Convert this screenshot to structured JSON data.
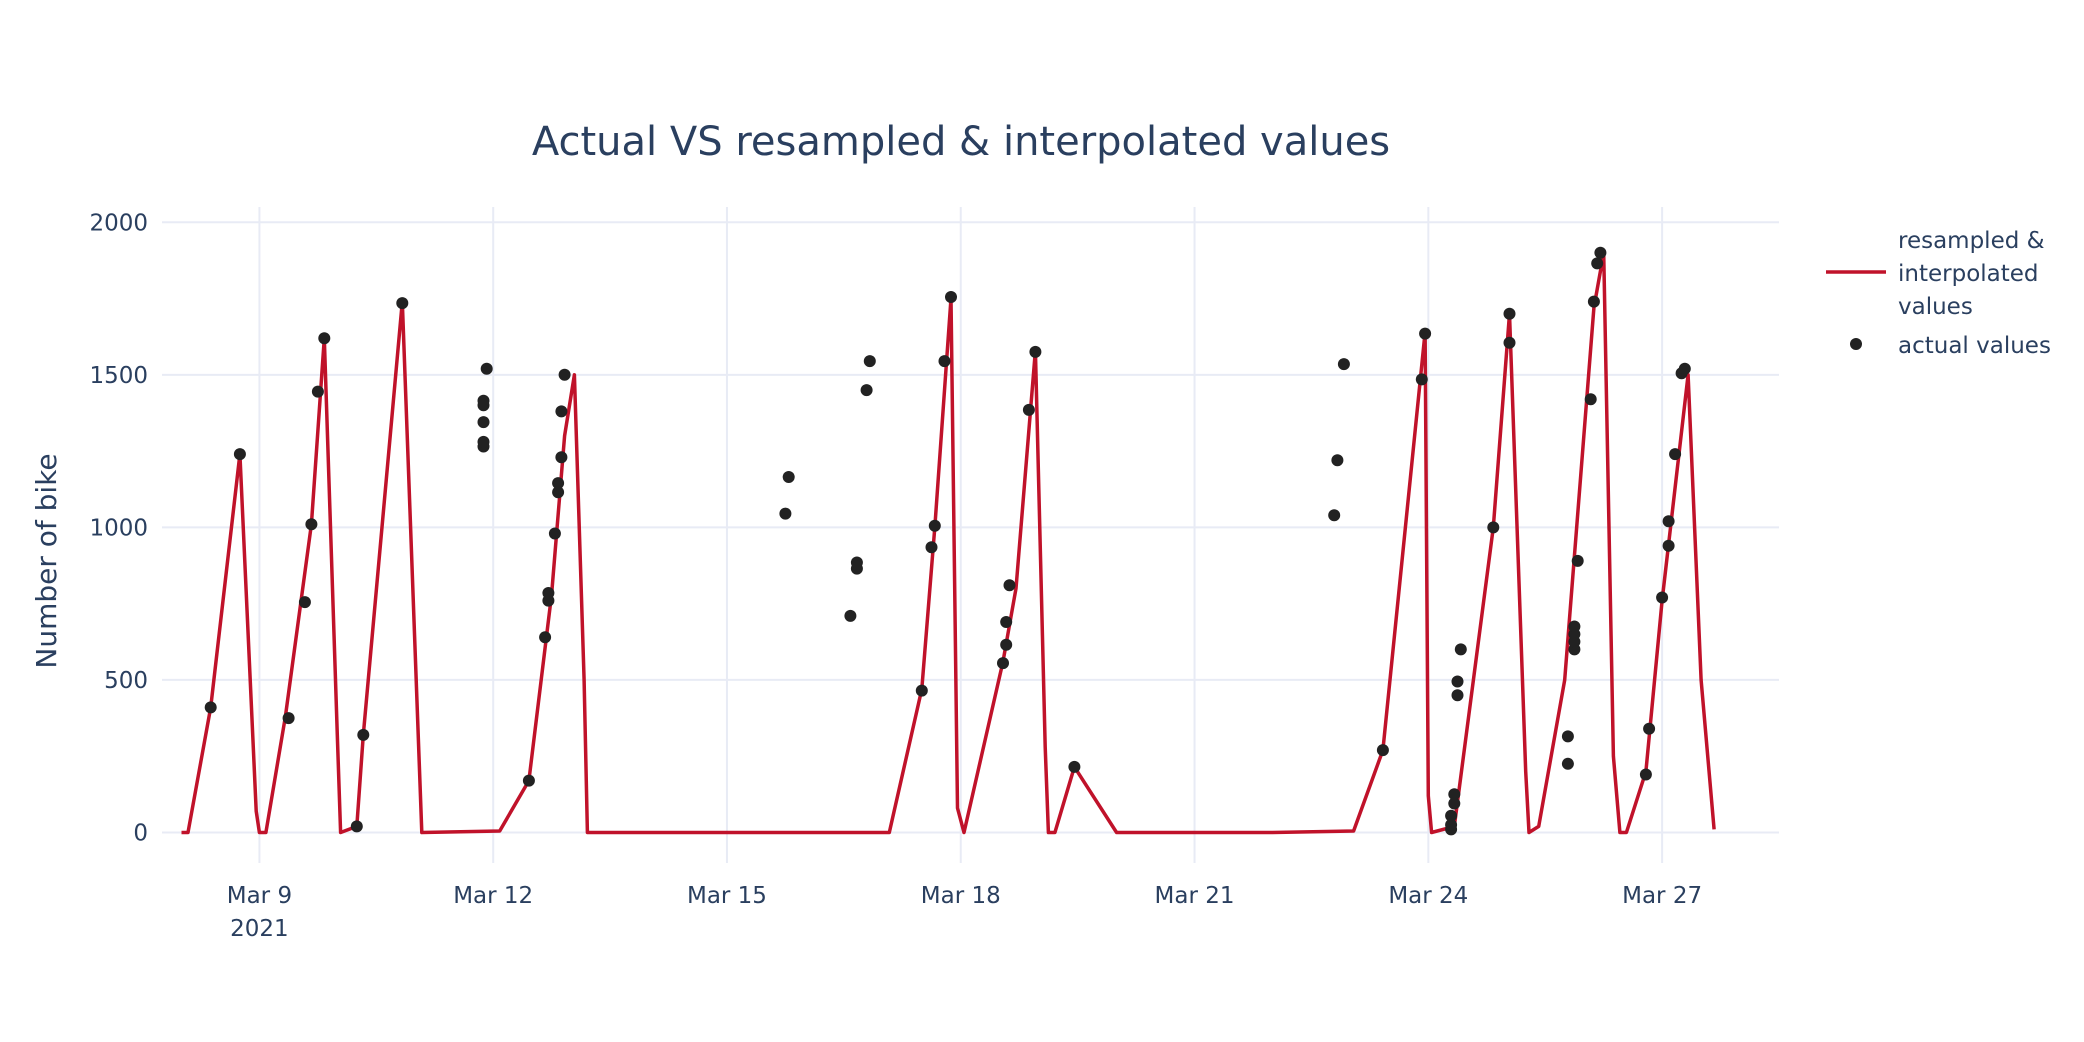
{
  "chart_data": {
    "type": "line",
    "title": "Actual VS resampled & interpolated values",
    "xlabel": "",
    "ylabel": "Number of bike",
    "xlim": [
      "2021-03-07T18:00",
      "2021-03-28T12:00"
    ],
    "ylim": [
      -100,
      2050
    ],
    "y_ticks": [
      0,
      500,
      1000,
      1500,
      2000
    ],
    "x_ticks": [
      {
        "date": "2021-03-09",
        "label": "Mar 9",
        "sublabel": "2021"
      },
      {
        "date": "2021-03-12",
        "label": "Mar 12"
      },
      {
        "date": "2021-03-15",
        "label": "Mar 15"
      },
      {
        "date": "2021-03-18",
        "label": "Mar 18"
      },
      {
        "date": "2021-03-21",
        "label": "Mar 21"
      },
      {
        "date": "2021-03-24",
        "label": "Mar 24"
      },
      {
        "date": "2021-03-27",
        "label": "Mar 27"
      }
    ],
    "grid": true,
    "legend_position": "top-right",
    "series": [
      {
        "name": "resampled & interpolated values",
        "mode": "line",
        "color": "#c0122a",
        "points": [
          [
            "2021-03-08T00:00",
            0
          ],
          [
            "2021-03-08T02:00",
            0
          ],
          [
            "2021-03-08T09:00",
            410
          ],
          [
            "2021-03-08T18:00",
            1240
          ],
          [
            "2021-03-08T23:00",
            70
          ],
          [
            "2021-03-09T00:00",
            0
          ],
          [
            "2021-03-09T02:00",
            0
          ],
          [
            "2021-03-09T08:00",
            380
          ],
          [
            "2021-03-09T16:00",
            1010
          ],
          [
            "2021-03-09T20:00",
            1620
          ],
          [
            "2021-03-10T00:00",
            320
          ],
          [
            "2021-03-10T01:00",
            0
          ],
          [
            "2021-03-10T06:00",
            20
          ],
          [
            "2021-03-10T08:00",
            320
          ],
          [
            "2021-03-10T20:00",
            1740
          ],
          [
            "2021-03-11T02:00",
            0
          ],
          [
            "2021-03-12T02:00",
            5
          ],
          [
            "2021-03-12T11:00",
            170
          ],
          [
            "2021-03-12T18:00",
            780
          ],
          [
            "2021-03-12T22:00",
            1300
          ],
          [
            "2021-03-13T01:00",
            1500
          ],
          [
            "2021-03-13T04:00",
            500
          ],
          [
            "2021-03-13T05:00",
            0
          ],
          [
            "2021-03-14T12:00",
            0
          ],
          [
            "2021-03-15T00:00",
            0
          ],
          [
            "2021-03-17T02:00",
            0
          ],
          [
            "2021-03-17T12:00",
            470
          ],
          [
            "2021-03-17T16:00",
            1000
          ],
          [
            "2021-03-17T21:00",
            1750
          ],
          [
            "2021-03-17T23:00",
            80
          ],
          [
            "2021-03-18T01:00",
            0
          ],
          [
            "2021-03-18T13:00",
            560
          ],
          [
            "2021-03-18T17:00",
            800
          ],
          [
            "2021-03-18T23:00",
            1580
          ],
          [
            "2021-03-19T02:00",
            280
          ],
          [
            "2021-03-19T03:00",
            0
          ],
          [
            "2021-03-19T05:00",
            0
          ],
          [
            "2021-03-19T11:00",
            215
          ],
          [
            "2021-03-20T00:00",
            0
          ],
          [
            "2021-03-21T00:00",
            0
          ],
          [
            "2021-03-22T00:00",
            0
          ],
          [
            "2021-03-23T01:00",
            5
          ],
          [
            "2021-03-23T10:00",
            270
          ],
          [
            "2021-03-23T23:00",
            1640
          ],
          [
            "2021-03-24T00:00",
            120
          ],
          [
            "2021-03-24T01:00",
            0
          ],
          [
            "2021-03-24T08:00",
            20
          ],
          [
            "2021-03-24T20:00",
            1000
          ],
          [
            "2021-03-25T01:00",
            1700
          ],
          [
            "2021-03-25T06:00",
            200
          ],
          [
            "2021-03-25T07:00",
            0
          ],
          [
            "2021-03-25T10:00",
            20
          ],
          [
            "2021-03-25T18:00",
            500
          ],
          [
            "2021-03-26T03:00",
            1720
          ],
          [
            "2021-03-26T06:00",
            1900
          ],
          [
            "2021-03-26T09:00",
            250
          ],
          [
            "2021-03-26T11:00",
            0
          ],
          [
            "2021-03-26T13:00",
            0
          ],
          [
            "2021-03-26T19:00",
            200
          ],
          [
            "2021-03-27T00:00",
            760
          ],
          [
            "2021-03-27T08:00",
            1500
          ],
          [
            "2021-03-27T12:00",
            500
          ],
          [
            "2021-03-27T16:00",
            10
          ]
        ]
      },
      {
        "name": "actual values",
        "mode": "markers",
        "color": "#222222",
        "points": [
          [
            "2021-03-08T09:00",
            410
          ],
          [
            "2021-03-08T18:00",
            1240
          ],
          [
            "2021-03-09T09:00",
            375
          ],
          [
            "2021-03-09T14:00",
            755
          ],
          [
            "2021-03-09T16:00",
            1010
          ],
          [
            "2021-03-09T18:00",
            1445
          ],
          [
            "2021-03-09T20:00",
            1620
          ],
          [
            "2021-03-10T06:00",
            20
          ],
          [
            "2021-03-10T08:00",
            320
          ],
          [
            "2021-03-10T20:00",
            1735
          ],
          [
            "2021-03-11T21:00",
            1265
          ],
          [
            "2021-03-11T21:00",
            1280
          ],
          [
            "2021-03-11T21:00",
            1345
          ],
          [
            "2021-03-11T21:00",
            1400
          ],
          [
            "2021-03-11T21:00",
            1415
          ],
          [
            "2021-03-11T22:00",
            1520
          ],
          [
            "2021-03-12T11:00",
            170
          ],
          [
            "2021-03-12T16:00",
            640
          ],
          [
            "2021-03-12T17:00",
            760
          ],
          [
            "2021-03-12T17:00",
            785
          ],
          [
            "2021-03-12T19:00",
            980
          ],
          [
            "2021-03-12T20:00",
            1115
          ],
          [
            "2021-03-12T20:00",
            1145
          ],
          [
            "2021-03-12T21:00",
            1230
          ],
          [
            "2021-03-12T21:00",
            1380
          ],
          [
            "2021-03-12T22:00",
            1500
          ],
          [
            "2021-03-15T18:00",
            1045
          ],
          [
            "2021-03-15T19:00",
            1165
          ],
          [
            "2021-03-16T14:00",
            710
          ],
          [
            "2021-03-16T16:00",
            865
          ],
          [
            "2021-03-16T16:00",
            885
          ],
          [
            "2021-03-16T19:00",
            1450
          ],
          [
            "2021-03-16T20:00",
            1545
          ],
          [
            "2021-03-17T12:00",
            465
          ],
          [
            "2021-03-17T15:00",
            935
          ],
          [
            "2021-03-17T16:00",
            1005
          ],
          [
            "2021-03-17T19:00",
            1545
          ],
          [
            "2021-03-17T21:00",
            1755
          ],
          [
            "2021-03-18T13:00",
            555
          ],
          [
            "2021-03-18T14:00",
            615
          ],
          [
            "2021-03-18T14:00",
            690
          ],
          [
            "2021-03-18T15:00",
            810
          ],
          [
            "2021-03-18T21:00",
            1385
          ],
          [
            "2021-03-18T23:00",
            1575
          ],
          [
            "2021-03-19T11:00",
            215
          ],
          [
            "2021-03-22T19:00",
            1040
          ],
          [
            "2021-03-22T20:00",
            1220
          ],
          [
            "2021-03-22T22:00",
            1535
          ],
          [
            "2021-03-23T10:00",
            270
          ],
          [
            "2021-03-23T22:00",
            1485
          ],
          [
            "2021-03-23T23:00",
            1635
          ],
          [
            "2021-03-24T07:00",
            10
          ],
          [
            "2021-03-24T07:00",
            25
          ],
          [
            "2021-03-24T07:00",
            55
          ],
          [
            "2021-03-24T08:00",
            95
          ],
          [
            "2021-03-24T08:00",
            125
          ],
          [
            "2021-03-24T09:00",
            450
          ],
          [
            "2021-03-24T09:00",
            495
          ],
          [
            "2021-03-24T10:00",
            600
          ],
          [
            "2021-03-24T20:00",
            1000
          ],
          [
            "2021-03-25T01:00",
            1605
          ],
          [
            "2021-03-25T01:00",
            1700
          ],
          [
            "2021-03-25T19:00",
            225
          ],
          [
            "2021-03-25T19:00",
            315
          ],
          [
            "2021-03-25T21:00",
            600
          ],
          [
            "2021-03-25T21:00",
            625
          ],
          [
            "2021-03-25T21:00",
            650
          ],
          [
            "2021-03-25T21:00",
            675
          ],
          [
            "2021-03-25T22:00",
            890
          ],
          [
            "2021-03-26T02:00",
            1420
          ],
          [
            "2021-03-26T03:00",
            1740
          ],
          [
            "2021-03-26T04:00",
            1865
          ],
          [
            "2021-03-26T05:00",
            1900
          ],
          [
            "2021-03-26T19:00",
            190
          ],
          [
            "2021-03-26T20:00",
            340
          ],
          [
            "2021-03-27T00:00",
            770
          ],
          [
            "2021-03-27T02:00",
            940
          ],
          [
            "2021-03-27T02:00",
            1020
          ],
          [
            "2021-03-27T04:00",
            1240
          ],
          [
            "2021-03-27T06:00",
            1505
          ],
          [
            "2021-03-27T07:00",
            1520
          ]
        ]
      }
    ]
  }
}
